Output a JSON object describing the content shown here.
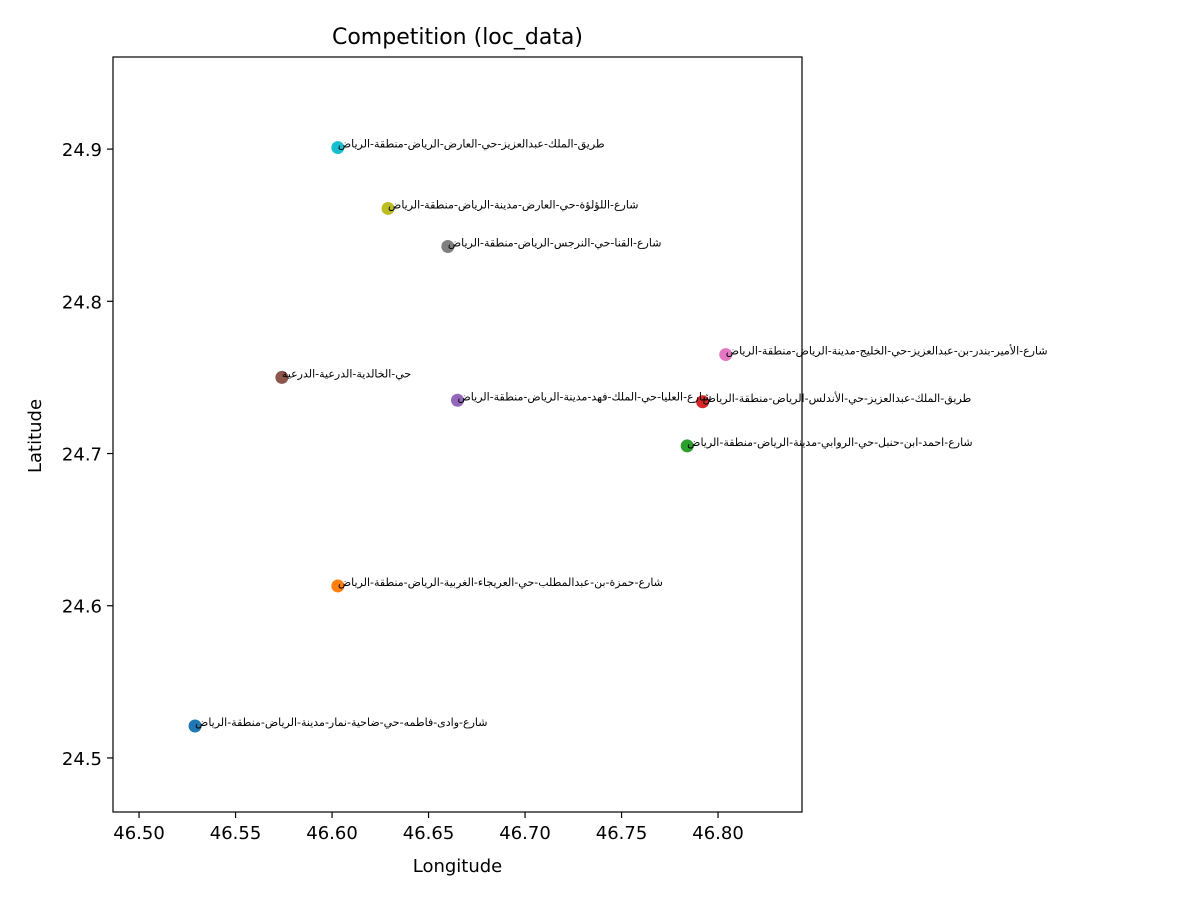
{
  "chart_data": {
    "type": "scatter",
    "title": "Competition (loc_data)",
    "xlabel": "Longitude",
    "ylabel": "Latitude",
    "xlim": [
      46.4865,
      46.8435
    ],
    "ylim": [
      24.4645,
      24.9605
    ],
    "xticks": [
      "46.50",
      "46.55",
      "46.60",
      "46.65",
      "46.70",
      "46.75",
      "46.80"
    ],
    "yticks": [
      "24.5",
      "24.6",
      "24.7",
      "24.8",
      "24.9"
    ],
    "grid": false,
    "points": [
      {
        "x": 46.529,
        "y": 24.521,
        "color": "#1f77b4",
        "label": "شارع-وادى-فاطمه-حي-ضاحية-نمار-مدينة-الرياض-منطقة-الرياض"
      },
      {
        "x": 46.603,
        "y": 24.613,
        "color": "#ff7f0e",
        "label": "شارع-حمزة-بن-عبدالمطلب-حي-العريجاء-الغربية-الرياض-منطقة-الرياض"
      },
      {
        "x": 46.784,
        "y": 24.705,
        "color": "#2ca02c",
        "label": "شارع-احمد-ابن-حنبل-حي-الروابي-مدينة-الرياض-منطقة-الرياض"
      },
      {
        "x": 46.792,
        "y": 24.734,
        "color": "#d62728",
        "label": "طريق-الملك-عبدالعزيز-حي-الأندلس-الرياض-منطقة-الرياض"
      },
      {
        "x": 46.665,
        "y": 24.735,
        "color": "#9467bd",
        "label": "شارع-العليا-حي-الملك-فهد-مدينة-الرياض-منطقة-الرياض"
      },
      {
        "x": 46.574,
        "y": 24.75,
        "color": "#8c564b",
        "label": "حي-الخالدية-الدرعية-الدرعية"
      },
      {
        "x": 46.804,
        "y": 24.765,
        "color": "#e377c2",
        "label": "شارع-الأمير-بندر-بن-عبدالعزيز-حي-الخليج-مدينة-الرياض-منطقة-الرياض"
      },
      {
        "x": 46.66,
        "y": 24.836,
        "color": "#7f7f7f",
        "label": "شارع-القنا-حي-النرجس-الرياض-منطقة-الرياض"
      },
      {
        "x": 46.629,
        "y": 24.861,
        "color": "#bcbd22",
        "label": "شارع-اللؤلؤة-حي-العارض-مدينة-الرياض-منطقة-الرياض"
      },
      {
        "x": 46.603,
        "y": 24.901,
        "color": "#17becf",
        "label": "طريق-الملك-عبدالعزيز-حي-العارض-الرياض-منطقة-الرياض"
      }
    ]
  }
}
